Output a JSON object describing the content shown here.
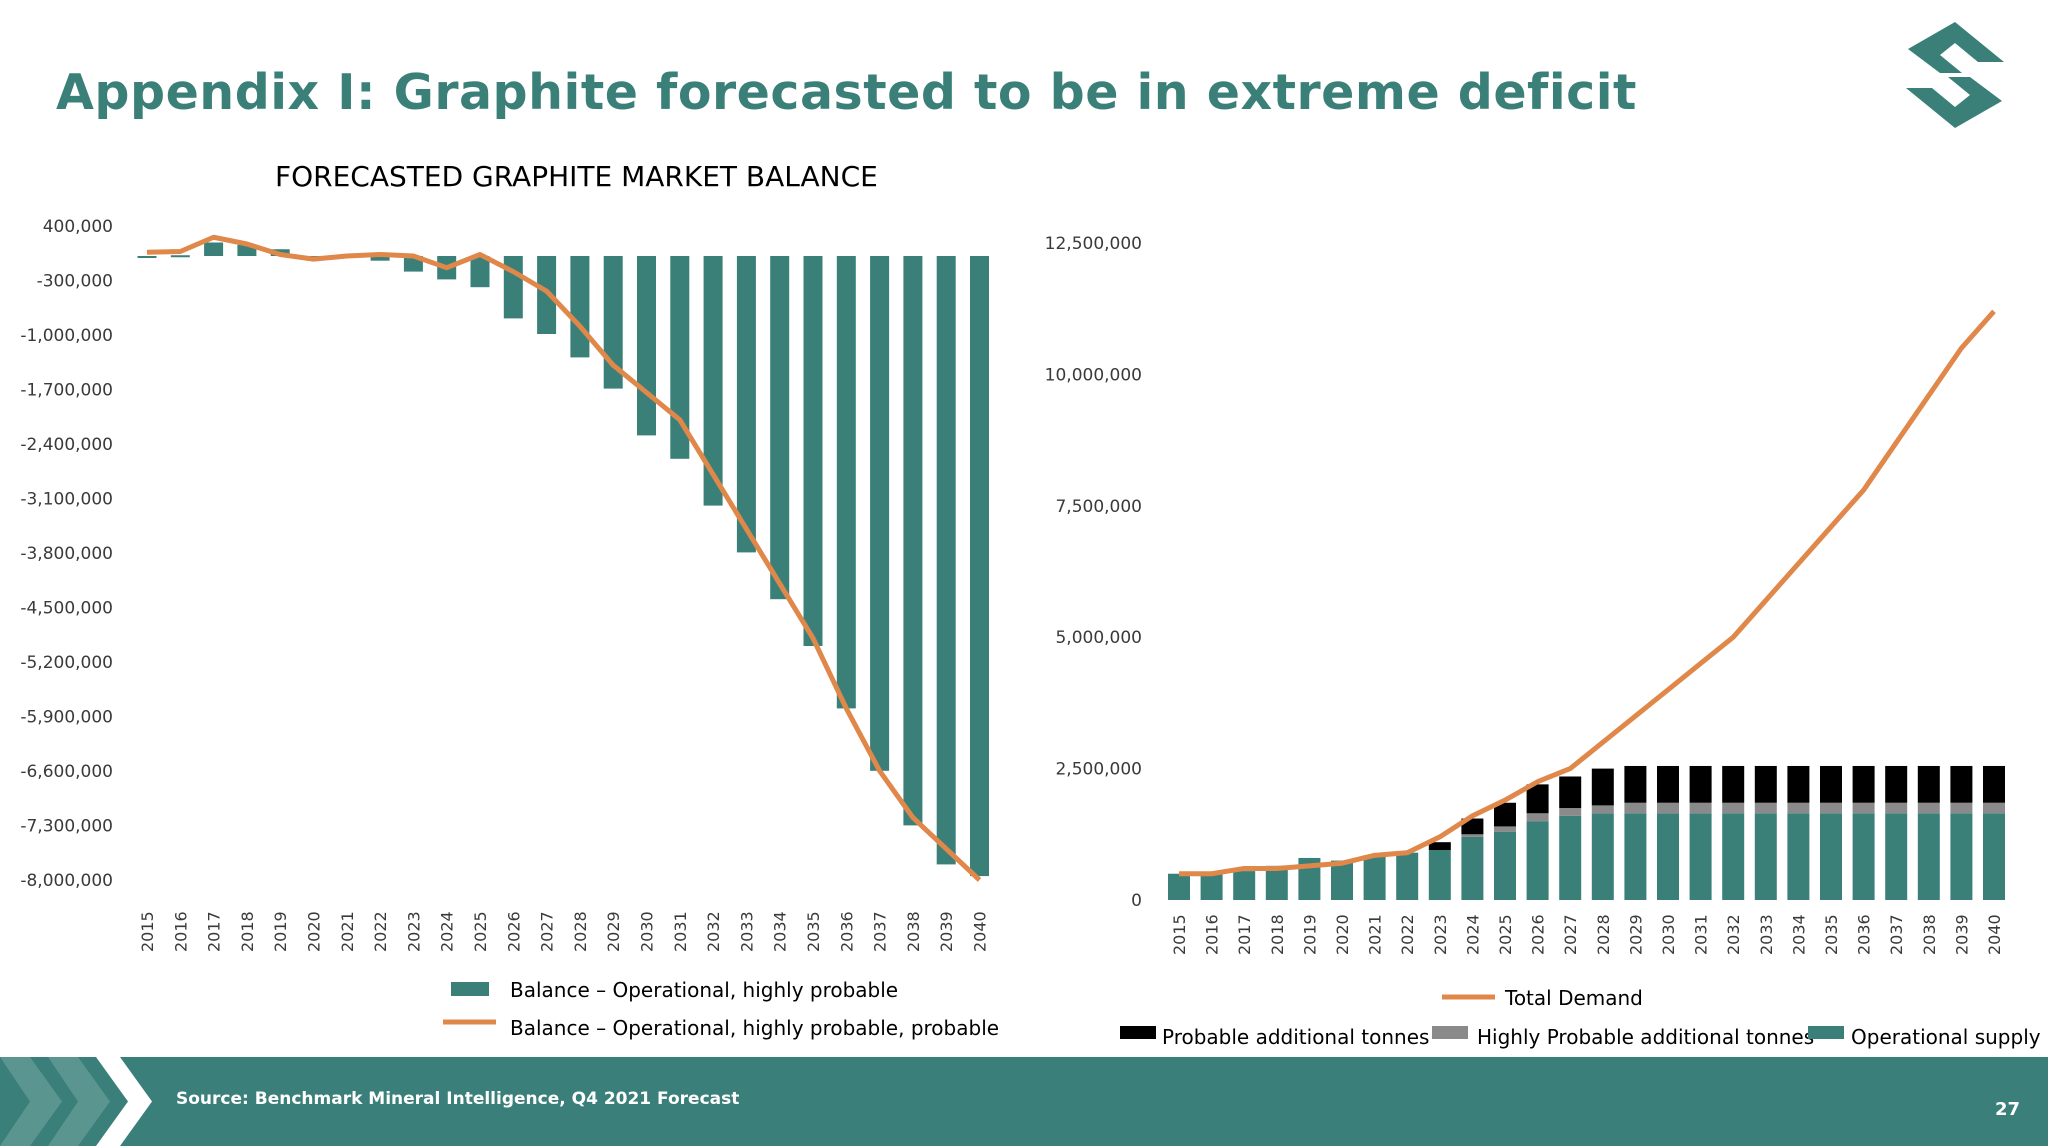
{
  "slide": {
    "title": "Appendix I: Graphite forecasted to be in extreme deficit",
    "subtitle": "FORECASTED GRAPHITE MARKET BALANCE",
    "source": "Source: Benchmark Mineral Intelligence, Q4 2021 Forecast",
    "page_number": "27"
  },
  "colors": {
    "teal": "#3a8079",
    "orange": "#e0874a",
    "black": "#000000",
    "gray": "#8a8a8a",
    "footer": "#3a7f79"
  },
  "chart_data": [
    {
      "type": "bar",
      "title": "FORECASTED GRAPHITE MARKET BALANCE",
      "categories": [
        "2015",
        "2016",
        "2017",
        "2018",
        "2019",
        "2020",
        "2021",
        "2022",
        "2023",
        "2024",
        "2025",
        "2026",
        "2027",
        "2028",
        "2029",
        "2030",
        "2031",
        "2032",
        "2033",
        "2034",
        "2035",
        "2036",
        "2037",
        "2038",
        "2039",
        "2040"
      ],
      "ylim": [
        -8000000,
        400000
      ],
      "yticks": [
        "400,000",
        "-300,000",
        "-1,000,000",
        "-1,700,000",
        "-2,400,000",
        "-3,100,000",
        "-3,800,000",
        "-4,500,000",
        "-5,200,000",
        "-5,900,000",
        "-6,600,000",
        "-7,300,000",
        "-8,000,000"
      ],
      "series": [
        {
          "name": "Balance – Operational, highly probable",
          "kind": "bar",
          "values": [
            -10000,
            10000,
            180000,
            150000,
            90000,
            0,
            20000,
            -60000,
            -200000,
            -300000,
            -400000,
            -800000,
            -1000000,
            -1300000,
            -1700000,
            -2300000,
            -2600000,
            -3200000,
            -3800000,
            -4400000,
            -5000000,
            -5800000,
            -6600000,
            -7300000,
            -7800000,
            -7950000
          ]
        },
        {
          "name": "Balance – Operational, highly probable, probable",
          "kind": "line",
          "values": [
            50000,
            60000,
            250000,
            160000,
            20000,
            -40000,
            0,
            20000,
            0,
            -150000,
            20000,
            -200000,
            -450000,
            -900000,
            -1400000,
            -1750000,
            -2100000,
            -2800000,
            -3500000,
            -4200000,
            -4900000,
            -5800000,
            -6600000,
            -7200000,
            -7600000,
            -8000000
          ]
        }
      ]
    },
    {
      "type": "bar",
      "stacked": true,
      "categories": [
        "2015",
        "2016",
        "2017",
        "2018",
        "2019",
        "2020",
        "2021",
        "2022",
        "2023",
        "2024",
        "2025",
        "2026",
        "2027",
        "2028",
        "2029",
        "2030",
        "2031",
        "2032",
        "2033",
        "2034",
        "2035",
        "2036",
        "2037",
        "2038",
        "2039",
        "2040"
      ],
      "ylim": [
        0,
        12500000
      ],
      "yticks": [
        "12,500,000",
        "10,000,000",
        "7,500,000",
        "5,000,000",
        "2,500,000",
        "0"
      ],
      "series": [
        {
          "name": "Operational supply",
          "kind": "bar",
          "values": [
            500000,
            500000,
            550000,
            650000,
            800000,
            750000,
            850000,
            900000,
            950000,
            1200000,
            1300000,
            1500000,
            1600000,
            1650000,
            1650000,
            1650000,
            1650000,
            1650000,
            1650000,
            1650000,
            1650000,
            1650000,
            1650000,
            1650000,
            1650000,
            1650000
          ]
        },
        {
          "name": "Highly Probable additional tonnes",
          "kind": "bar",
          "values": [
            0,
            0,
            0,
            0,
            0,
            0,
            0,
            0,
            0,
            50000,
            100000,
            150000,
            150000,
            150000,
            200000,
            200000,
            200000,
            200000,
            200000,
            200000,
            200000,
            200000,
            200000,
            200000,
            200000,
            200000
          ]
        },
        {
          "name": "Probable additional tonnes",
          "kind": "bar",
          "values": [
            0,
            0,
            0,
            0,
            0,
            0,
            0,
            0,
            150000,
            300000,
            450000,
            550000,
            600000,
            700000,
            700000,
            700000,
            700000,
            700000,
            700000,
            700000,
            700000,
            700000,
            700000,
            700000,
            700000,
            700000
          ]
        },
        {
          "name": "Total Demand",
          "kind": "line",
          "values": [
            500000,
            500000,
            600000,
            600000,
            650000,
            700000,
            850000,
            900000,
            1200000,
            1600000,
            1900000,
            2250000,
            2500000,
            3000000,
            3500000,
            4000000,
            4500000,
            5000000,
            5700000,
            6400000,
            7100000,
            7800000,
            8700000,
            9600000,
            10500000,
            11400000
          ]
        }
      ]
    }
  ]
}
